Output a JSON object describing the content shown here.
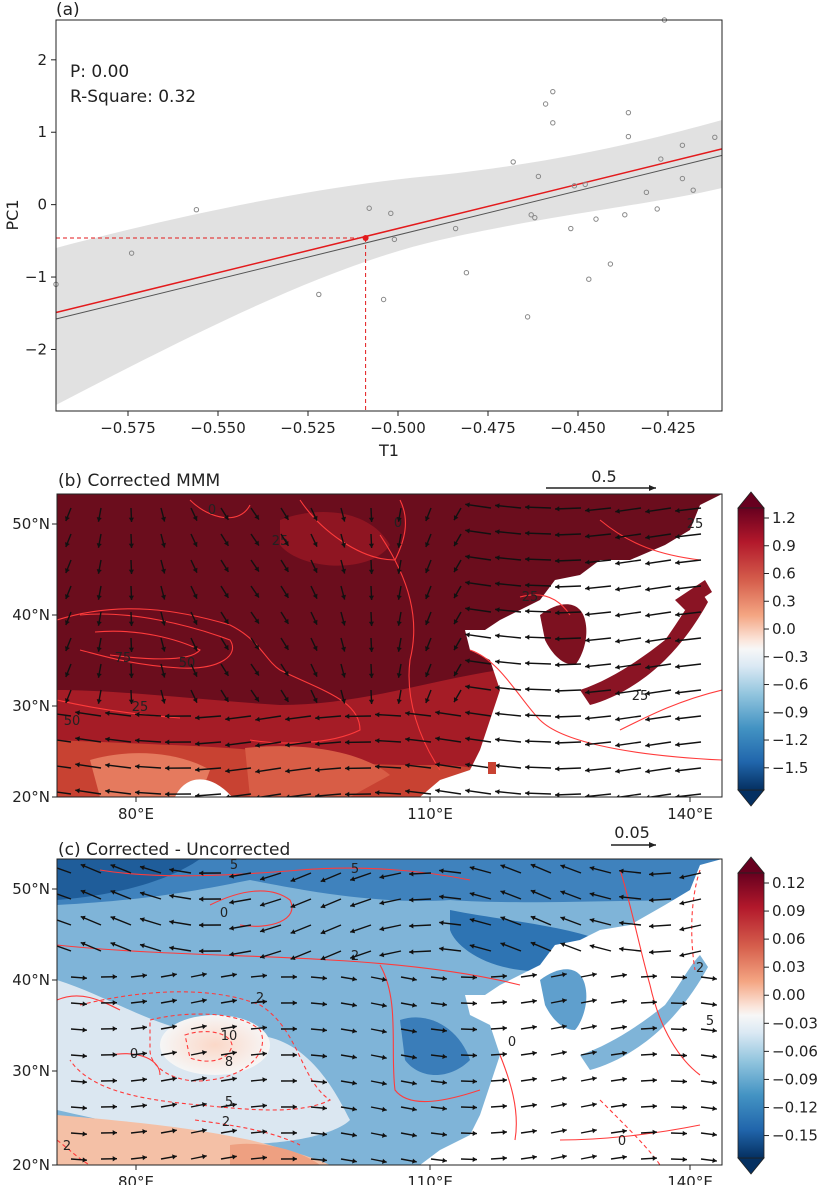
{
  "panel_a": {
    "title": "(a)",
    "stats": {
      "p_label": "P: 0.00",
      "r2_label": "R-Square: 0.32"
    },
    "colors": {
      "fit": "#e31a1c",
      "fit_alt": "#555555",
      "band": "#dcdcdc",
      "points": "#888888"
    }
  },
  "panel_b": {
    "title": "(b) Corrected MMM",
    "ref_vector": "0.5",
    "lat_ticks": [
      "50°N",
      "40°N",
      "30°N",
      "20°N"
    ],
    "lon_ticks": [
      "80°E",
      "110°E",
      "140°E"
    ],
    "contour_labels": [
      "0",
      "0",
      "25",
      "50",
      "75",
      "25",
      "50",
      "25",
      "25",
      "25"
    ],
    "colorbar": [
      "1.2",
      "0.9",
      "0.6",
      "0.3",
      "0.0",
      "−0.3",
      "−0.6",
      "−0.9",
      "−1.2",
      "−1.5"
    ]
  },
  "panel_c": {
    "title": "(c) Corrected - Uncorrected",
    "ref_vector": "0.05",
    "lat_ticks": [
      "50°N",
      "40°N",
      "30°N",
      "20°N"
    ],
    "lon_ticks": [
      "80°E",
      "110°E",
      "140°E"
    ],
    "contour_labels": [
      "5",
      "0",
      "2",
      "2",
      "0",
      "10",
      "8",
      "5",
      "0",
      "2",
      "2",
      "5",
      "0",
      "2",
      "5"
    ],
    "colorbar": [
      "0.12",
      "0.09",
      "0.06",
      "0.03",
      "0.00",
      "−0.03",
      "−0.06",
      "−0.09",
      "−0.12",
      "−0.15"
    ]
  },
  "chart_data": [
    {
      "type": "scatter",
      "title": "(a)",
      "xlabel": "T1",
      "ylabel": "PC1",
      "xlim": [
        -0.595,
        -0.41
      ],
      "ylim": [
        -2.85,
        2.55
      ],
      "x_ticks": [
        -0.575,
        -0.55,
        -0.525,
        -0.5,
        -0.475,
        -0.45,
        -0.425
      ],
      "x_tick_labels": [
        "−0.575",
        "−0.550",
        "−0.525",
        "−0.500",
        "−0.475",
        "−0.450",
        "−0.425"
      ],
      "y_ticks": [
        2,
        1,
        0,
        -1,
        -2
      ],
      "y_tick_labels": [
        "2",
        "1",
        "0",
        "−1",
        "−2"
      ],
      "points": [
        [
          -0.595,
          -1.1
        ],
        [
          -0.574,
          -0.67
        ],
        [
          -0.556,
          -0.07
        ],
        [
          -0.522,
          -1.24
        ],
        [
          -0.508,
          -0.05
        ],
        [
          -0.504,
          -1.31
        ],
        [
          -0.502,
          -0.12
        ],
        [
          -0.501,
          -0.48
        ],
        [
          -0.484,
          -0.33
        ],
        [
          -0.481,
          -0.94
        ],
        [
          -0.468,
          0.59
        ],
        [
          -0.464,
          -1.55
        ],
        [
          -0.463,
          -0.14
        ],
        [
          -0.462,
          -0.18
        ],
        [
          -0.461,
          0.39
        ],
        [
          -0.459,
          1.39
        ],
        [
          -0.457,
          1.56
        ],
        [
          -0.457,
          1.13
        ],
        [
          -0.452,
          -0.33
        ],
        [
          -0.451,
          0.26
        ],
        [
          -0.448,
          0.28
        ],
        [
          -0.447,
          -1.03
        ],
        [
          -0.445,
          -0.2
        ],
        [
          -0.441,
          -0.82
        ],
        [
          -0.437,
          -0.14
        ],
        [
          -0.436,
          1.27
        ],
        [
          -0.436,
          0.94
        ],
        [
          -0.431,
          0.17
        ],
        [
          -0.428,
          -0.06
        ],
        [
          -0.427,
          0.63
        ],
        [
          -0.426,
          2.55
        ],
        [
          -0.421,
          0.36
        ],
        [
          -0.421,
          0.82
        ],
        [
          -0.418,
          0.2
        ],
        [
          -0.412,
          0.93
        ]
      ],
      "fit_line": {
        "x": [
          -0.595,
          -0.41
        ],
        "y": [
          -1.49,
          0.77
        ]
      },
      "fit_line_alt": {
        "x": [
          -0.595,
          -0.41
        ],
        "y": [
          -1.58,
          0.68
        ]
      },
      "highlight_point": [
        -0.509,
        -0.46
      ],
      "grid": false
    },
    {
      "type": "heatmap",
      "title": "(b) Corrected MMM",
      "x_tick_labels": [
        "80°E",
        "110°E",
        "140°E"
      ],
      "y_tick_labels": [
        "50°N",
        "40°N",
        "30°N",
        "20°N"
      ],
      "colorbar_ticks": [
        1.2,
        0.9,
        0.6,
        0.3,
        0.0,
        -0.3,
        -0.6,
        -0.9,
        -1.2,
        -1.5
      ],
      "colormap": "RdBu_r",
      "reference_vector": 0.5
    },
    {
      "type": "heatmap",
      "title": "(c) Corrected - Uncorrected",
      "x_tick_labels": [
        "80°E",
        "110°E",
        "140°E"
      ],
      "y_tick_labels": [
        "50°N",
        "40°N",
        "30°N",
        "20°N"
      ],
      "colorbar_ticks": [
        0.12,
        0.09,
        0.06,
        0.03,
        0.0,
        -0.03,
        -0.06,
        -0.09,
        -0.12,
        -0.15
      ],
      "colormap": "RdBu_r",
      "reference_vector": 0.05
    }
  ]
}
